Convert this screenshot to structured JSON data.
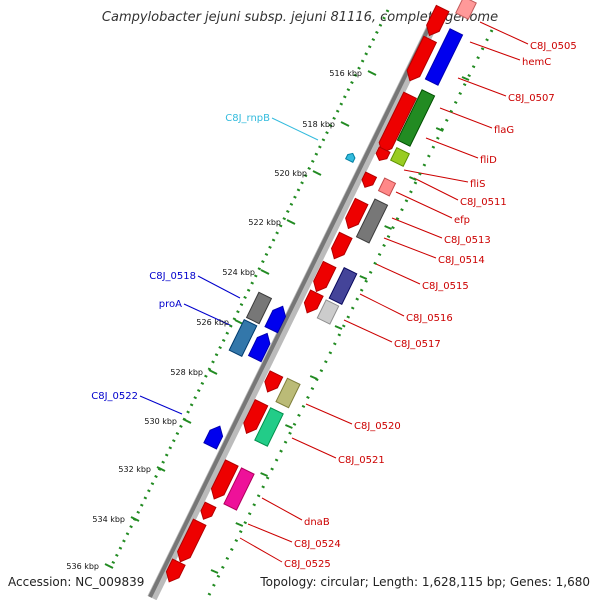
{
  "title": "Campylobacter jejuni subsp. jejuni 81116, complete genome",
  "footer": {
    "accession": "Accession: NC_009839",
    "summary": "Topology: circular; Length: 1,628,115 bp; Genes: 1,680"
  },
  "ticks": [
    "516 kbp",
    "518 kbp",
    "520 kbp",
    "522 kbp",
    "524 kbp",
    "526 kbp",
    "528 kbp",
    "530 kbp",
    "532 kbp",
    "534 kbp",
    "536 kbp"
  ],
  "right_labels": [
    {
      "text": "C8J_0505",
      "color": "#cc0000"
    },
    {
      "text": "hemC",
      "color": "#cc0000"
    },
    {
      "text": "C8J_0507",
      "color": "#cc0000"
    },
    {
      "text": "flaG",
      "color": "#cc0000"
    },
    {
      "text": "fliD",
      "color": "#cc0000"
    },
    {
      "text": "fliS",
      "color": "#cc0000"
    },
    {
      "text": "C8J_0511",
      "color": "#cc0000"
    },
    {
      "text": "efp",
      "color": "#cc0000"
    },
    {
      "text": "C8J_0513",
      "color": "#cc0000"
    },
    {
      "text": "C8J_0514",
      "color": "#cc0000"
    },
    {
      "text": "C8J_0515",
      "color": "#cc0000"
    },
    {
      "text": "C8J_0516",
      "color": "#cc0000"
    },
    {
      "text": "C8J_0517",
      "color": "#cc0000"
    },
    {
      "text": "C8J_0520",
      "color": "#cc0000"
    },
    {
      "text": "C8J_0521",
      "color": "#cc0000"
    },
    {
      "text": "dnaB",
      "color": "#cc0000"
    },
    {
      "text": "C8J_0524",
      "color": "#cc0000"
    },
    {
      "text": "C8J_0525",
      "color": "#cc0000"
    }
  ],
  "left_labels": [
    {
      "text": "C8J_rnpB",
      "color": "#33bbdd"
    },
    {
      "text": "C8J_0518",
      "color": "#0000cc"
    },
    {
      "text": "proA",
      "color": "#0000cc"
    },
    {
      "text": "C8J_0522",
      "color": "#0000cc"
    }
  ],
  "colors": {
    "cds_red": "#ee0000",
    "blue": "#0000ee",
    "green": "#228b22",
    "gray": "#777777",
    "label_red": "#cc0000",
    "tick_green": "#228b22"
  }
}
